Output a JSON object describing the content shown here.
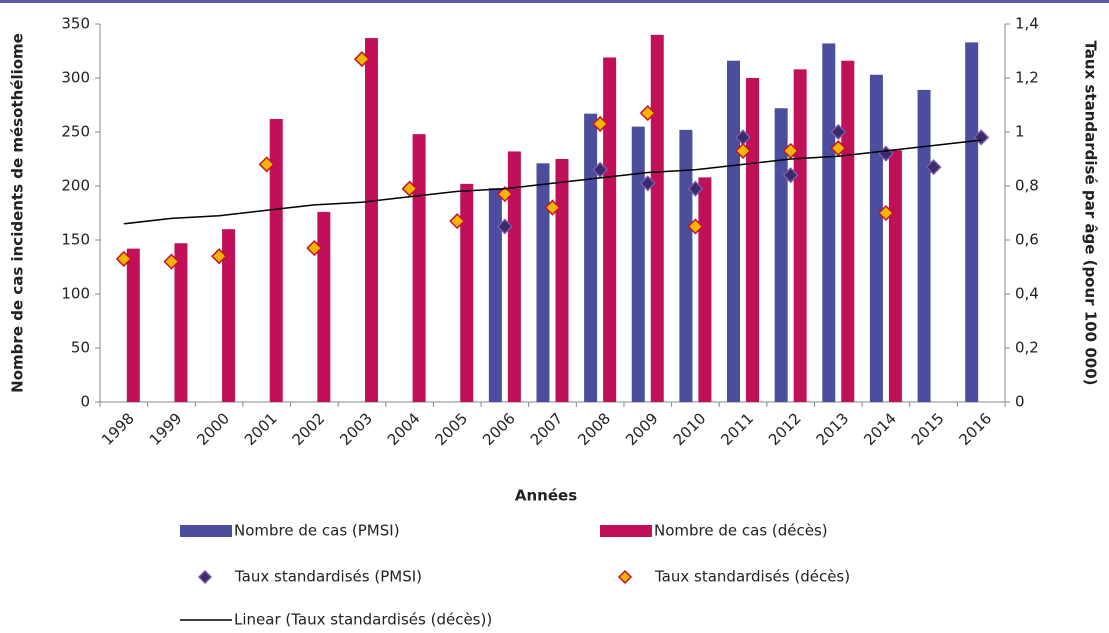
{
  "chart_data": {
    "type": "bar",
    "x_label": "Années",
    "y_label": "Nombre de cas incidents de mésothéliome",
    "y2_label": "Taux standardisé par âge (pour 100 000)",
    "categories": [
      "1998",
      "1999",
      "2000",
      "2001",
      "2002",
      "2003",
      "2004",
      "2005",
      "2006",
      "2007",
      "2008",
      "2009",
      "2010",
      "2011",
      "2012",
      "2013",
      "2014",
      "2015",
      "2016"
    ],
    "series": [
      {
        "name": "Nombre de cas (PMSI)",
        "type": "bar",
        "color": "#4a4e9c",
        "values": [
          null,
          null,
          null,
          null,
          null,
          null,
          null,
          null,
          198,
          221,
          267,
          255,
          252,
          316,
          272,
          332,
          303,
          289,
          333
        ]
      },
      {
        "name": "Nombre de cas (décès)",
        "type": "bar",
        "color": "#c0105a",
        "values": [
          142,
          147,
          160,
          262,
          176,
          337,
          248,
          202,
          232,
          225,
          319,
          340,
          208,
          300,
          308,
          316,
          233,
          null,
          null
        ]
      },
      {
        "name": "Taux standardisés (PMSI)",
        "type": "scatter",
        "axis": "y2",
        "color": "#3a2c6a",
        "edge": "#7a5aa8",
        "values": [
          null,
          null,
          null,
          null,
          null,
          null,
          null,
          null,
          0.65,
          null,
          0.86,
          0.81,
          0.79,
          0.98,
          0.84,
          1.0,
          0.92,
          0.87,
          0.98
        ]
      },
      {
        "name": "Taux standardisés (décès)",
        "type": "scatter",
        "axis": "y2",
        "color": "#f2b600",
        "edge": "#c8102e",
        "values": [
          0.53,
          0.52,
          0.54,
          0.88,
          0.57,
          1.27,
          0.79,
          0.67,
          0.77,
          0.72,
          1.03,
          1.07,
          0.65,
          0.93,
          0.93,
          0.94,
          0.7,
          null,
          null
        ]
      },
      {
        "name": "Linear (Taux standardisés (décès))",
        "type": "line",
        "axis": "y2",
        "color": "#000000",
        "values": [
          0.66,
          0.68,
          0.69,
          0.71,
          0.73,
          0.74,
          0.76,
          0.78,
          0.79,
          0.81,
          0.83,
          0.85,
          0.86,
          0.88,
          0.9,
          0.91,
          0.93,
          0.95,
          0.97
        ]
      }
    ],
    "ylim": [
      0,
      350
    ],
    "yticks": [
      0,
      50,
      100,
      150,
      200,
      250,
      300,
      350
    ],
    "y2lim": [
      0,
      1.4
    ],
    "y2ticks": [
      0,
      {
        "value": 0.2,
        "label": "0,2"
      },
      {
        "value": 0.4,
        "label": "0,4"
      },
      {
        "value": 0.6,
        "label": "0,6"
      },
      {
        "value": 0.8,
        "label": "0,8"
      },
      1,
      {
        "value": 1.2,
        "label": "1,2"
      },
      {
        "value": 1.4,
        "label": "1,4"
      }
    ],
    "grid": false
  }
}
